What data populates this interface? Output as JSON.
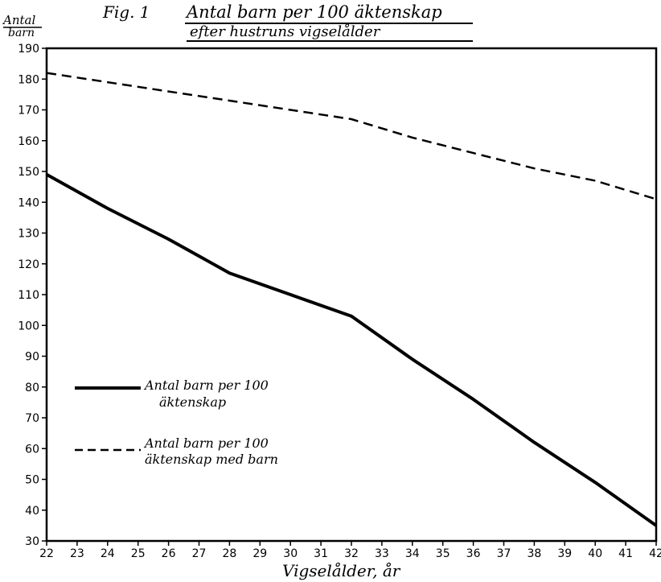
{
  "chart_data": {
    "type": "line",
    "fig_label": "Fig. 1",
    "title": "Antal barn per 100 äktenskap",
    "subtitle": "efter hustruns vigselålder",
    "ylabel_line1": "Antal",
    "ylabel_line2": "barn",
    "xlabel": "Vigselålder, år",
    "xlim": [
      22,
      42
    ],
    "ylim": [
      30,
      190
    ],
    "x_ticks": [
      22,
      23,
      24,
      25,
      26,
      27,
      28,
      29,
      30,
      31,
      32,
      33,
      34,
      35,
      36,
      37,
      38,
      39,
      40,
      41,
      42
    ],
    "y_ticks": [
      30,
      40,
      50,
      60,
      70,
      80,
      90,
      100,
      110,
      120,
      130,
      140,
      150,
      160,
      170,
      180,
      190
    ],
    "grid": false,
    "legend_placement": "left-middle",
    "series": [
      {
        "name_line1": "Antal barn per 100",
        "name_line2": "äktenskap",
        "style": "solid",
        "color": "#000000",
        "x": [
          22,
          24,
          26,
          28,
          30,
          32,
          34,
          36,
          38,
          40,
          42
        ],
        "y": [
          149,
          138,
          128,
          117,
          110,
          103,
          89,
          76,
          62,
          49,
          35
        ]
      },
      {
        "name_line1": "Antal barn per 100",
        "name_line2": "äktenskap med barn",
        "style": "dashed",
        "color": "#000000",
        "x": [
          22,
          24,
          26,
          28,
          30,
          32,
          34,
          36,
          38,
          40,
          42
        ],
        "y": [
          182,
          179,
          176,
          173,
          170,
          167,
          161,
          156,
          151,
          147,
          141
        ]
      }
    ]
  }
}
